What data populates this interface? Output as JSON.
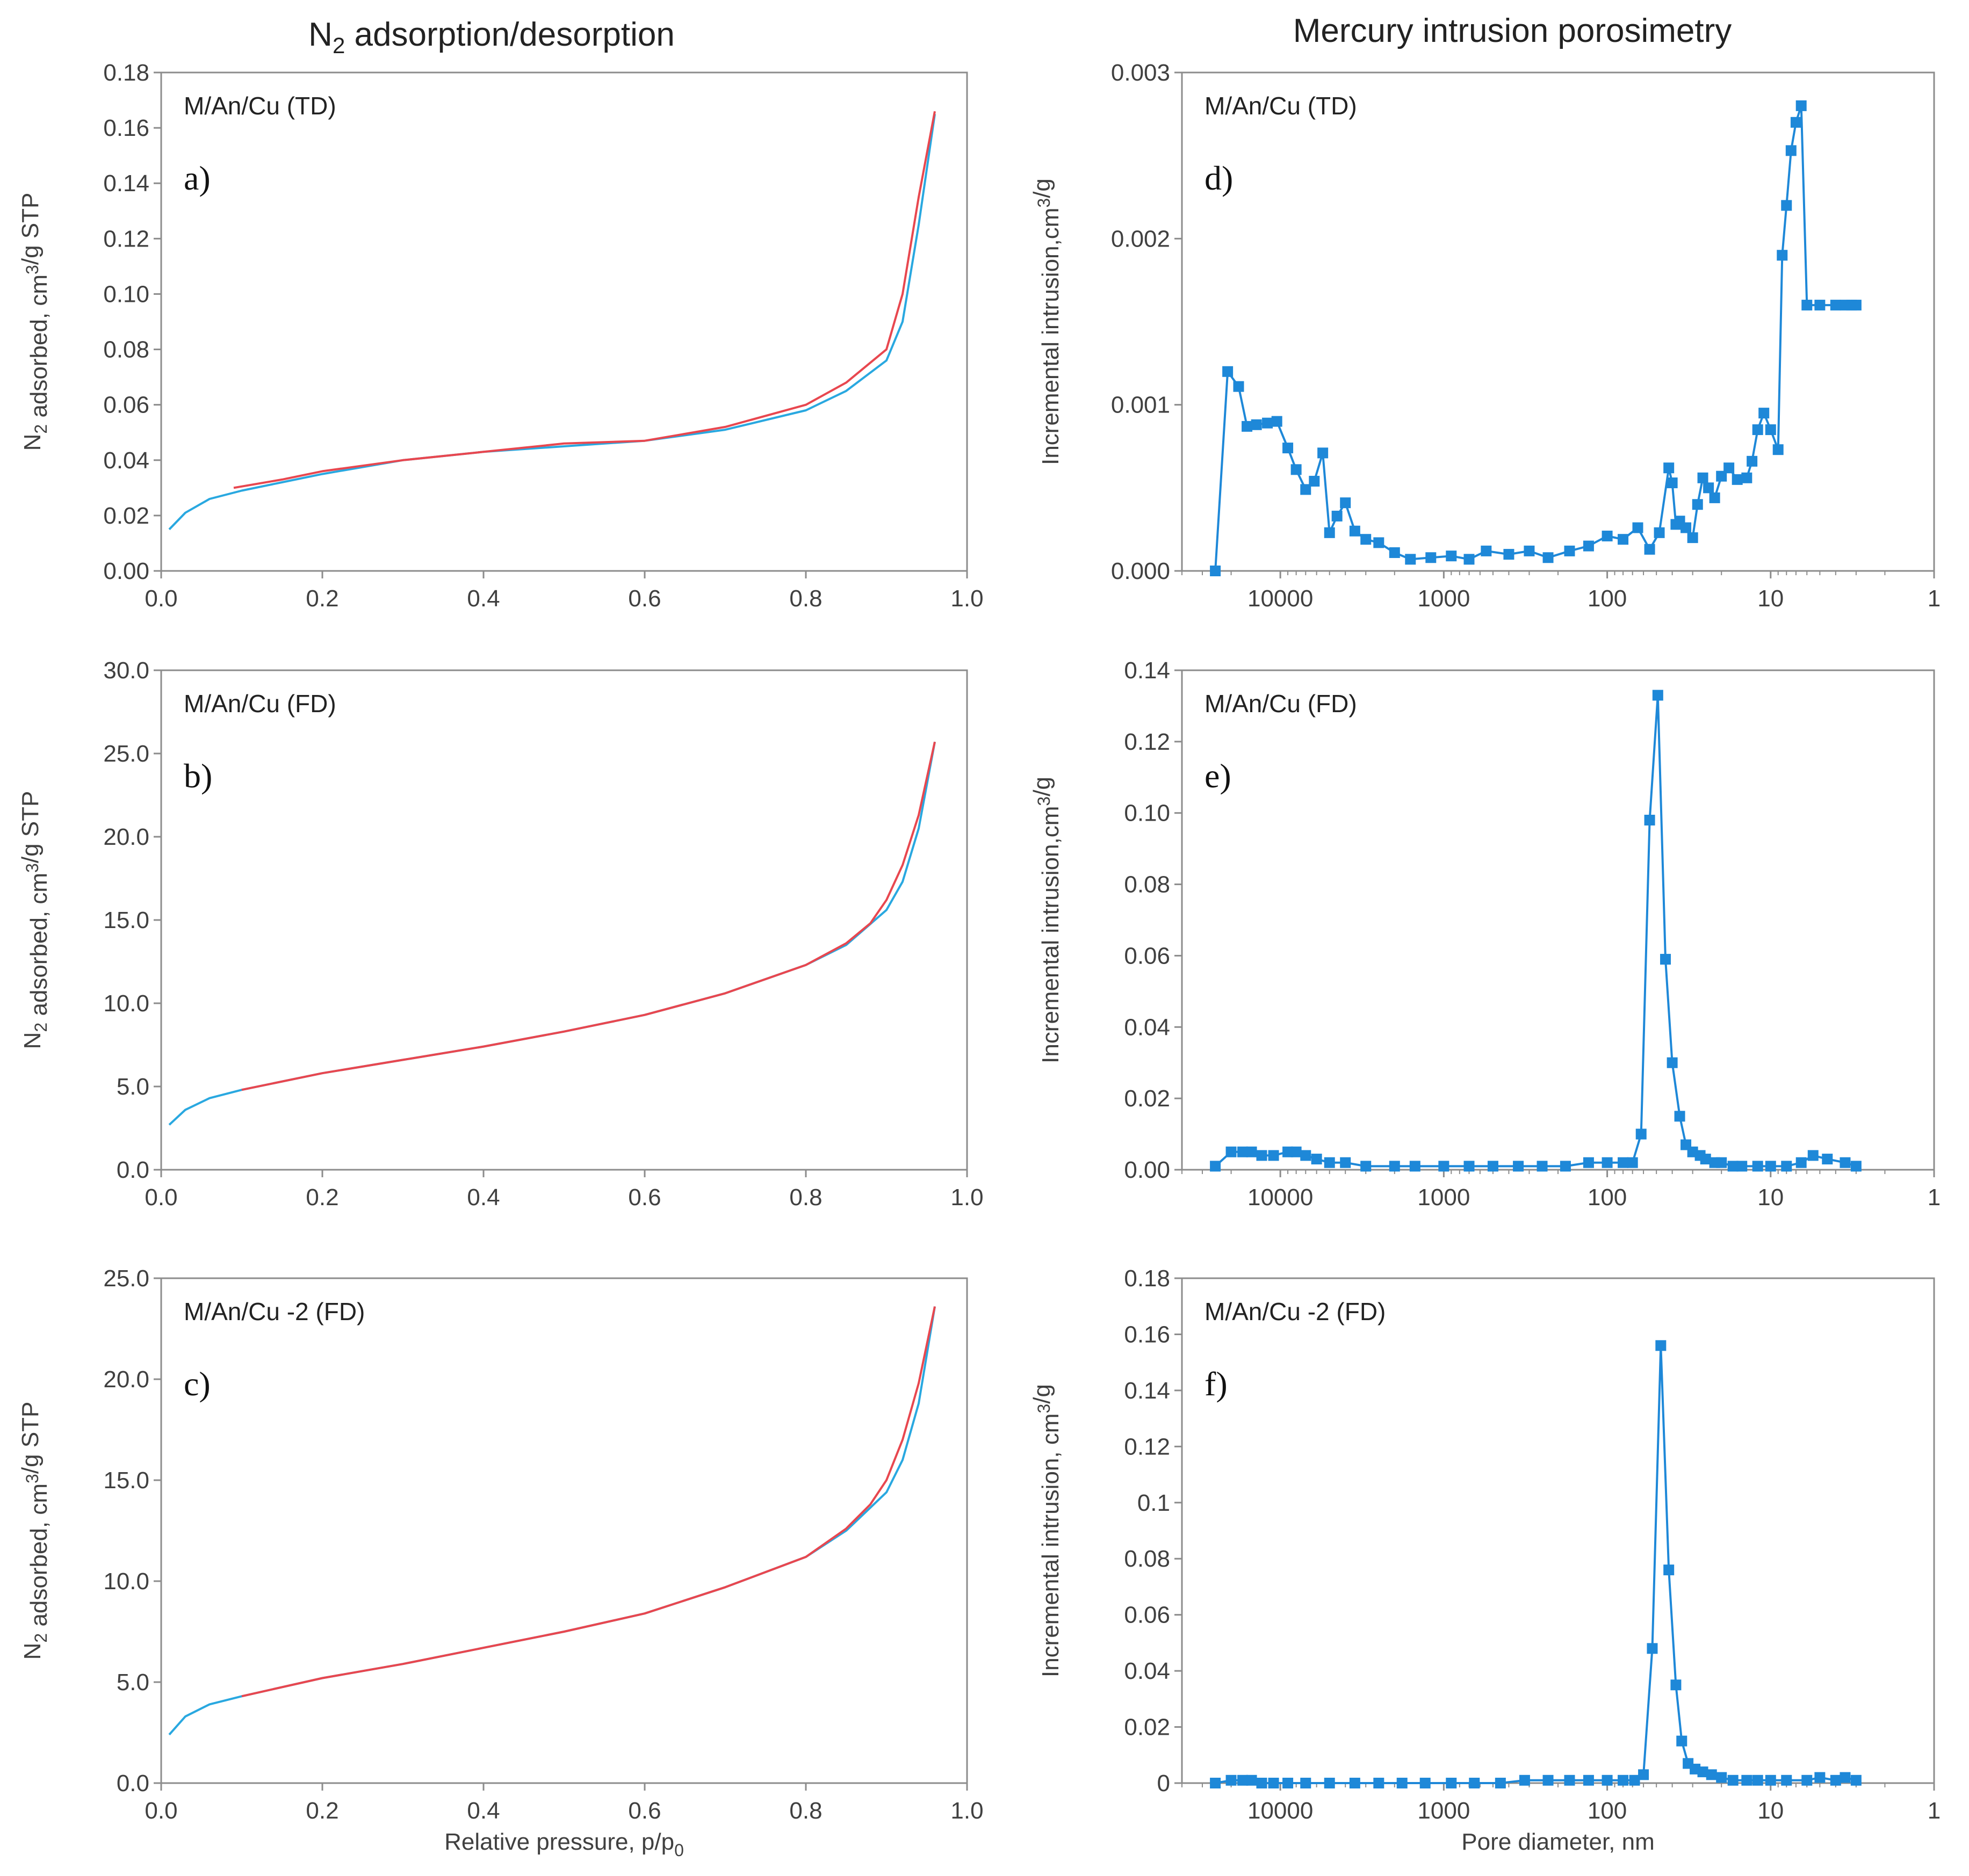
{
  "columns": {
    "left_title": "N2 adsorption/desorption",
    "right_title": "Mercury intrusion porosimetry"
  },
  "colors": {
    "adsorption": "#29a8e0",
    "desorption": "#e8474f",
    "intrusion": "#1e88d8",
    "axis": "#8c8c8c"
  },
  "chart_data": [
    {
      "id": "a",
      "type": "line",
      "panel_label": "a)",
      "sample": "M/An/Cu (TD)",
      "xlabel": "",
      "ylabel": "N2 adsorbed, cm3/g STP",
      "xlim": [
        0,
        1.0
      ],
      "ylim": [
        0,
        0.18
      ],
      "xticks": [
        "0.0",
        "0.2",
        "0.4",
        "0.6",
        "0.8",
        "1.0"
      ],
      "yticks": [
        "0.00",
        "0.02",
        "0.04",
        "0.06",
        "0.08",
        "0.10",
        "0.12",
        "0.14",
        "0.16",
        "0.18"
      ],
      "grid": false,
      "series": [
        {
          "role": "adsorption",
          "x": [
            0.01,
            0.03,
            0.06,
            0.1,
            0.15,
            0.2,
            0.3,
            0.4,
            0.5,
            0.6,
            0.7,
            0.8,
            0.85,
            0.9,
            0.92,
            0.94,
            0.96
          ],
          "y": [
            0.015,
            0.021,
            0.026,
            0.029,
            0.032,
            0.035,
            0.04,
            0.043,
            0.045,
            0.047,
            0.051,
            0.058,
            0.065,
            0.076,
            0.09,
            0.125,
            0.165
          ]
        },
        {
          "role": "desorption",
          "x": [
            0.09,
            0.15,
            0.2,
            0.3,
            0.4,
            0.5,
            0.6,
            0.7,
            0.8,
            0.85,
            0.9,
            0.92,
            0.94,
            0.96
          ],
          "y": [
            0.03,
            0.033,
            0.036,
            0.04,
            0.043,
            0.046,
            0.047,
            0.052,
            0.06,
            0.068,
            0.08,
            0.1,
            0.135,
            0.166
          ]
        }
      ]
    },
    {
      "id": "b",
      "type": "line",
      "panel_label": "b)",
      "sample": "M/An/Cu (FD)",
      "xlabel": "",
      "ylabel": "N2 adsorbed, cm3/g STP",
      "xlim": [
        0,
        1.0
      ],
      "ylim": [
        0,
        30.0
      ],
      "xticks": [
        "0.0",
        "0.2",
        "0.4",
        "0.6",
        "0.8",
        "1.0"
      ],
      "yticks": [
        "0.0",
        "5.0",
        "10.0",
        "15.0",
        "20.0",
        "25.0",
        "30.0"
      ],
      "grid": false,
      "series": [
        {
          "role": "adsorption",
          "x": [
            0.01,
            0.03,
            0.06,
            0.1,
            0.2,
            0.3,
            0.4,
            0.5,
            0.6,
            0.7,
            0.8,
            0.85,
            0.9,
            0.92,
            0.94,
            0.96
          ],
          "y": [
            2.7,
            3.6,
            4.3,
            4.8,
            5.8,
            6.6,
            7.4,
            8.3,
            9.3,
            10.6,
            12.3,
            13.5,
            15.6,
            17.3,
            20.5,
            25.7
          ]
        },
        {
          "role": "desorption",
          "x": [
            0.1,
            0.2,
            0.3,
            0.4,
            0.5,
            0.6,
            0.7,
            0.8,
            0.85,
            0.88,
            0.9,
            0.92,
            0.94,
            0.96
          ],
          "y": [
            4.8,
            5.8,
            6.6,
            7.4,
            8.3,
            9.3,
            10.6,
            12.3,
            13.6,
            14.8,
            16.2,
            18.3,
            21.3,
            25.7
          ]
        }
      ]
    },
    {
      "id": "c",
      "type": "line",
      "panel_label": "c)",
      "sample": "M/An/Cu -2 (FD)",
      "xlabel": "Relative pressure, p/p0",
      "ylabel": "N2 adsorbed, cm3/g STP",
      "xlim": [
        0,
        1.0
      ],
      "ylim": [
        0,
        25.0
      ],
      "xticks": [
        "0.0",
        "0.2",
        "0.4",
        "0.6",
        "0.8",
        "1.0"
      ],
      "yticks": [
        "0.0",
        "5.0",
        "10.0",
        "15.0",
        "20.0",
        "25.0"
      ],
      "grid": false,
      "series": [
        {
          "role": "adsorption",
          "x": [
            0.01,
            0.03,
            0.06,
            0.1,
            0.2,
            0.3,
            0.4,
            0.5,
            0.6,
            0.7,
            0.8,
            0.85,
            0.9,
            0.92,
            0.94,
            0.96
          ],
          "y": [
            2.4,
            3.3,
            3.9,
            4.3,
            5.2,
            5.9,
            6.7,
            7.5,
            8.4,
            9.7,
            11.2,
            12.5,
            14.4,
            16.0,
            18.8,
            23.6
          ]
        },
        {
          "role": "desorption",
          "x": [
            0.1,
            0.2,
            0.3,
            0.4,
            0.5,
            0.6,
            0.7,
            0.8,
            0.85,
            0.88,
            0.9,
            0.92,
            0.94,
            0.96
          ],
          "y": [
            4.3,
            5.2,
            5.9,
            6.7,
            7.5,
            8.4,
            9.7,
            11.2,
            12.6,
            13.8,
            15.0,
            17.0,
            19.8,
            23.6
          ]
        }
      ]
    },
    {
      "id": "d",
      "type": "line",
      "panel_label": "d)",
      "sample": "M/An/Cu (TD)",
      "xlabel": "",
      "ylabel": "Incremental intrusion,cm3/g",
      "x_scale": "log",
      "x_reversed": true,
      "xlim": [
        40000,
        1
      ],
      "ylim": [
        0,
        0.003
      ],
      "xticks": [
        "10000",
        "1000",
        "100",
        "10",
        "1"
      ],
      "yticks": [
        "0.000",
        "0.001",
        "0.002",
        "0.003"
      ],
      "grid": false,
      "series": [
        {
          "role": "intrusion",
          "x": [
            25000,
            21000,
            18000,
            16000,
            14000,
            12000,
            10500,
            9000,
            8000,
            7000,
            6200,
            5500,
            5000,
            4500,
            4000,
            3500,
            3000,
            2500,
            2000,
            1600,
            1200,
            900,
            700,
            550,
            400,
            300,
            230,
            170,
            130,
            100,
            80,
            65,
            55,
            48,
            42,
            40,
            38,
            36,
            33,
            30,
            28,
            26,
            24,
            22,
            20,
            18,
            16,
            14,
            13,
            12,
            11,
            10,
            9,
            8.5,
            8,
            7.5,
            7,
            6.5,
            6,
            5,
            4,
            3.5,
            3.2,
            3
          ],
          "y": [
            0.0,
            0.0012,
            0.00111,
            0.00087,
            0.00088,
            0.00089,
            0.0009,
            0.00074,
            0.00061,
            0.00049,
            0.00054,
            0.00071,
            0.00023,
            0.00033,
            0.00041,
            0.00024,
            0.00019,
            0.00017,
            0.00011,
            7e-05,
            8e-05,
            9e-05,
            7e-05,
            0.00012,
            0.0001,
            0.00012,
            8e-05,
            0.00012,
            0.00015,
            0.00021,
            0.00019,
            0.00026,
            0.00013,
            0.00023,
            0.00062,
            0.00053,
            0.00028,
            0.0003,
            0.00026,
            0.0002,
            0.0004,
            0.00056,
            0.0005,
            0.00044,
            0.00057,
            0.00062,
            0.00055,
            0.00056,
            0.00066,
            0.00085,
            0.00095,
            0.00085,
            0.00073,
            0.0019,
            0.0022,
            0.00253,
            0.0027,
            0.0028,
            0.0016,
            0.0016,
            0.0016,
            0.0016,
            0.0016,
            0.0016
          ]
        }
      ]
    },
    {
      "id": "e",
      "type": "line",
      "panel_label": "e)",
      "sample": "M/An/Cu (FD)",
      "xlabel": "",
      "ylabel": "Incremental intrusion,cm3/g",
      "x_scale": "log",
      "x_reversed": true,
      "xlim": [
        40000,
        1
      ],
      "ylim": [
        0,
        0.14
      ],
      "xticks": [
        "10000",
        "1000",
        "100",
        "10",
        "1"
      ],
      "yticks": [
        "0.00",
        "0.02",
        "0.04",
        "0.06",
        "0.08",
        "0.10",
        "0.12",
        "0.14"
      ],
      "grid": false,
      "series": [
        {
          "role": "intrusion",
          "x": [
            25000,
            20000,
            17000,
            15000,
            13000,
            11000,
            9000,
            8000,
            7000,
            6000,
            5000,
            4000,
            3000,
            2000,
            1500,
            1000,
            700,
            500,
            350,
            250,
            180,
            130,
            100,
            80,
            70,
            62,
            55,
            49,
            44,
            40,
            36,
            33,
            30,
            27,
            25,
            22,
            20,
            17,
            15,
            12,
            10,
            8,
            6.5,
            5.5,
            4.5,
            3.5,
            3
          ],
          "y": [
            0.001,
            0.005,
            0.005,
            0.005,
            0.004,
            0.004,
            0.005,
            0.005,
            0.004,
            0.003,
            0.002,
            0.002,
            0.001,
            0.001,
            0.001,
            0.001,
            0.001,
            0.001,
            0.001,
            0.001,
            0.001,
            0.002,
            0.002,
            0.002,
            0.002,
            0.01,
            0.098,
            0.133,
            0.059,
            0.03,
            0.015,
            0.007,
            0.005,
            0.004,
            0.003,
            0.002,
            0.002,
            0.001,
            0.001,
            0.001,
            0.001,
            0.001,
            0.002,
            0.004,
            0.003,
            0.002,
            0.001
          ]
        }
      ]
    },
    {
      "id": "f",
      "type": "line",
      "panel_label": "f)",
      "sample": "M/An/Cu -2 (FD)",
      "xlabel": "Pore diameter, nm",
      "ylabel": "Incremental intrusion, cm3/g",
      "x_scale": "log",
      "x_reversed": true,
      "xlim": [
        40000,
        1
      ],
      "ylim": [
        0,
        0.18
      ],
      "xticks": [
        "10000",
        "1000",
        "100",
        "10",
        "1"
      ],
      "yticks": [
        "0",
        "0.02",
        "0.04",
        "0.06",
        "0.08",
        "0.1",
        "0.12",
        "0.14",
        "0.16",
        "0.18"
      ],
      "grid": false,
      "series": [
        {
          "role": "intrusion",
          "x": [
            25000,
            20000,
            17000,
            15000,
            13000,
            11000,
            9000,
            7000,
            5000,
            3500,
            2500,
            1800,
            1300,
            900,
            650,
            450,
            320,
            230,
            170,
            130,
            100,
            80,
            68,
            60,
            53,
            47,
            42,
            38,
            35,
            32,
            29,
            26,
            23,
            20,
            17,
            14,
            12,
            10,
            8,
            6,
            5,
            4,
            3.5,
            3
          ],
          "y": [
            0.0,
            0.001,
            0.001,
            0.001,
            0.0,
            0.0,
            0.0,
            0.0,
            0.0,
            0.0,
            0.0,
            0.0,
            0.0,
            0.0,
            0.0,
            0.0,
            0.001,
            0.001,
            0.001,
            0.001,
            0.001,
            0.001,
            0.001,
            0.003,
            0.048,
            0.156,
            0.076,
            0.035,
            0.015,
            0.007,
            0.005,
            0.004,
            0.003,
            0.002,
            0.001,
            0.001,
            0.001,
            0.001,
            0.001,
            0.001,
            0.002,
            0.001,
            0.002,
            0.001
          ]
        }
      ]
    }
  ]
}
